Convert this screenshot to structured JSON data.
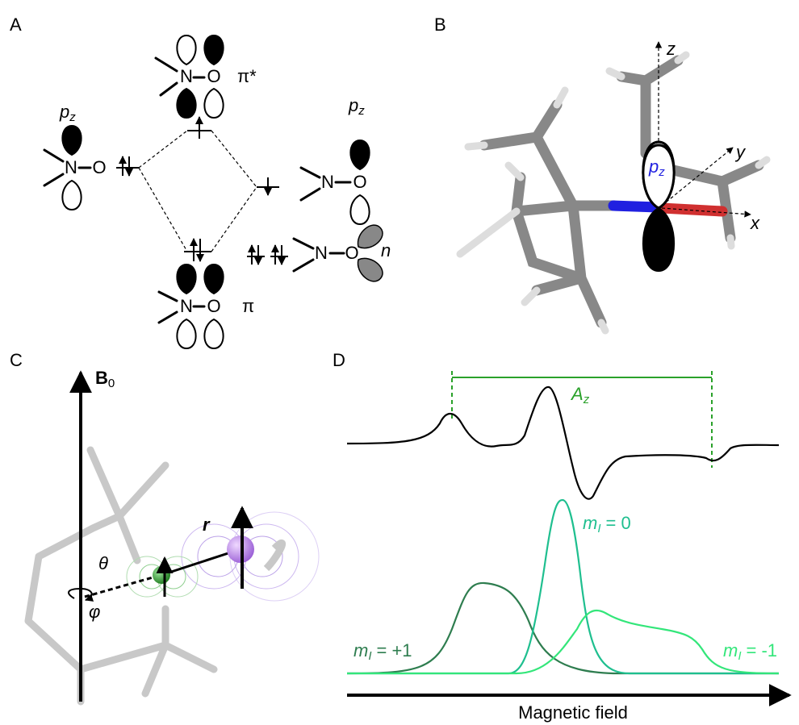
{
  "panel_a": {
    "label": "A",
    "atoms": {
      "nitrogen": "N",
      "oxygen": "O"
    },
    "pi_star": "π*",
    "pi": "π",
    "pz": {
      "symbol": "p",
      "subscript": "z"
    },
    "n": "n"
  },
  "panel_b": {
    "label": "B",
    "axes": {
      "x": "x",
      "y": "y",
      "z": "z"
    },
    "pz": {
      "symbol": "p",
      "subscript": "z"
    }
  },
  "panel_c": {
    "label": "C",
    "field": {
      "symbol": "B",
      "subscript": "0"
    },
    "theta": "θ",
    "phi": "φ",
    "r": "r"
  },
  "panel_d": {
    "label": "D",
    "coupling": {
      "symbol": "A",
      "subscript": "z"
    },
    "lines": [
      {
        "symbol": "m",
        "subscript": "I",
        "value": "= +1"
      },
      {
        "symbol": "m",
        "subscript": "I",
        "value": "= 0"
      },
      {
        "symbol": "m",
        "subscript": "I",
        "value": "= -1"
      }
    ],
    "x_axis": "Magnetic field"
  }
}
